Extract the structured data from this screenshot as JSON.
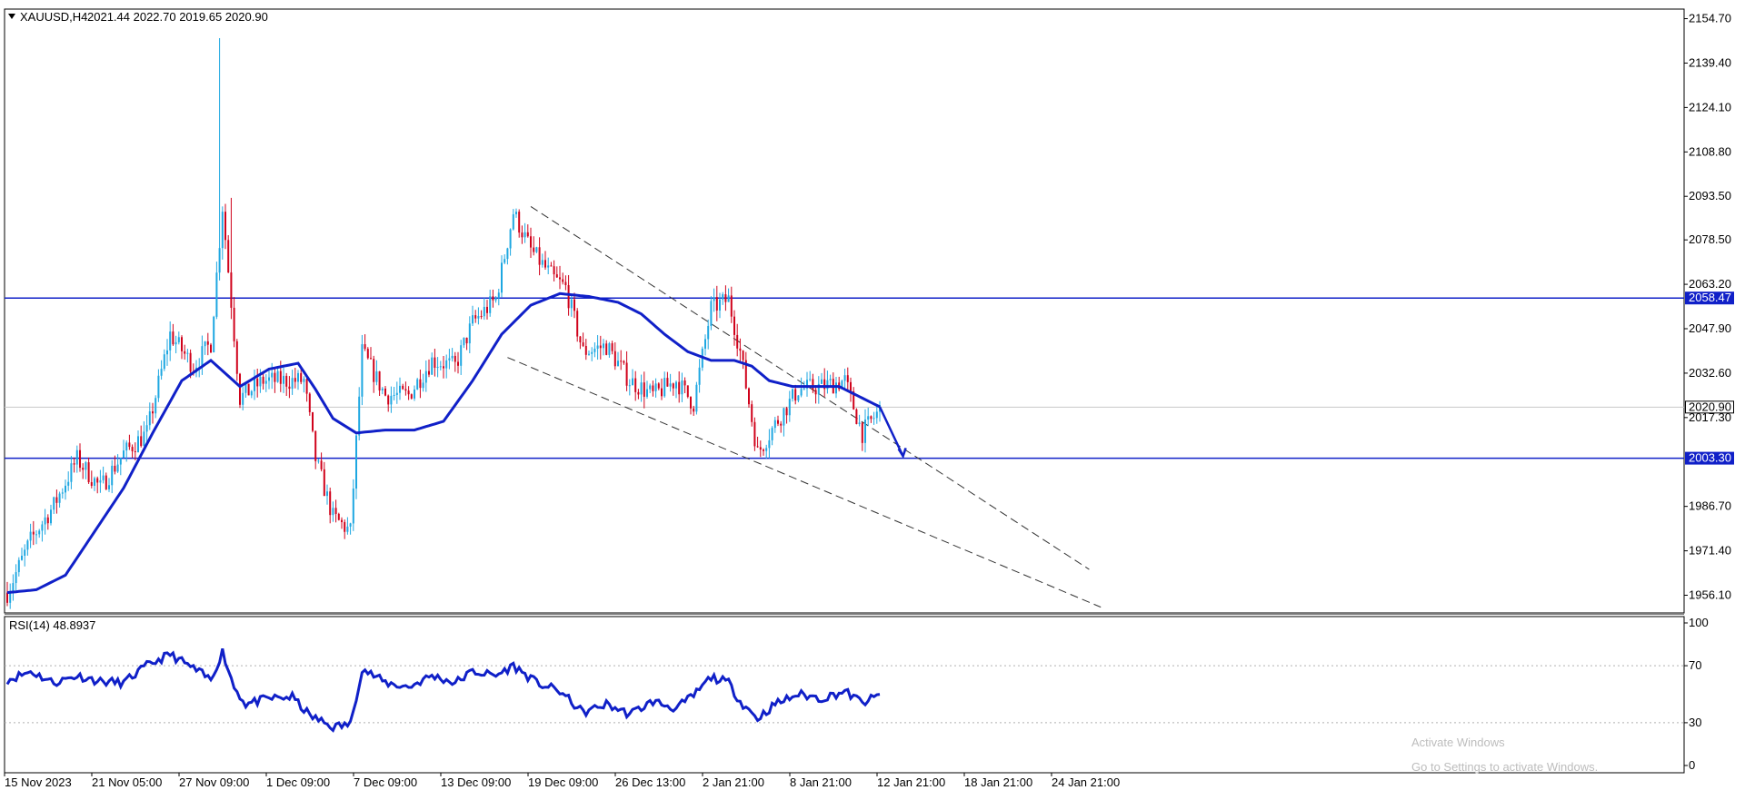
{
  "header": {
    "symbol": "XAUUSD,H4",
    "ohlc": "2021.44 2022.70 2019.65 2020.90"
  },
  "rsi_panel": {
    "label": "RSI(14) 48.8937"
  },
  "watermark": {
    "line1": "Activate Windows",
    "line2": "Go to Settings to activate Windows."
  },
  "colors": {
    "bull": "#1ea7e1",
    "bear": "#d0021b",
    "ma": "#1020c8",
    "hline": "#1020c8",
    "rsi": "#1020c8",
    "channel": "#333333",
    "price_tag_bg": "#1020c8",
    "current_tag_bg": "#ffffff"
  },
  "chart_data": [
    {
      "type": "candlestick",
      "symbol": "XAUUSD",
      "timeframe": "H4",
      "ylim": [
        1950.0,
        2158.0
      ],
      "y_ticks": [
        "2154.70",
        "2139.40",
        "2124.10",
        "2108.80",
        "2093.50",
        "2078.50",
        "2063.20",
        "2047.90",
        "2032.60",
        "2017.30",
        "1986.70",
        "1971.40",
        "1956.10"
      ],
      "x_ticks": [
        "15 Nov 2023",
        "21 Nov 05:00",
        "27 Nov 09:00",
        "1 Dec 09:00",
        "7 Dec 09:00",
        "13 Dec 09:00",
        "19 Dec 09:00",
        "26 Dec 13:00",
        "2 Jan 21:00",
        "8 Jan 21:00",
        "12 Jan 21:00",
        "18 Jan 21:00",
        "24 Jan 21:00"
      ],
      "current_price": "2020.90",
      "horizontal_levels": [
        {
          "label": "2058.47",
          "value": 2058.47
        },
        {
          "label": "2003.30",
          "value": 2003.3
        }
      ],
      "close_anchors": [
        [
          0,
          1957
        ],
        [
          8,
          1975
        ],
        [
          16,
          1987
        ],
        [
          24,
          2003
        ],
        [
          32,
          1993
        ],
        [
          40,
          2005
        ],
        [
          48,
          2012
        ],
        [
          56,
          2046
        ],
        [
          64,
          2035
        ],
        [
          70,
          2043
        ],
        [
          74,
          2090
        ],
        [
          80,
          2024
        ],
        [
          88,
          2030
        ],
        [
          96,
          2030
        ],
        [
          102,
          2030
        ],
        [
          106,
          2003
        ],
        [
          112,
          1983
        ],
        [
          118,
          1978
        ],
        [
          122,
          2040
        ],
        [
          130,
          2025
        ],
        [
          138,
          2025
        ],
        [
          146,
          2037
        ],
        [
          154,
          2035
        ],
        [
          160,
          2050
        ],
        [
          168,
          2058
        ],
        [
          174,
          2088
        ],
        [
          180,
          2075
        ],
        [
          188,
          2065
        ],
        [
          192,
          2062
        ],
        [
          198,
          2040
        ],
        [
          206,
          2042
        ],
        [
          214,
          2030
        ],
        [
          222,
          2025
        ],
        [
          230,
          2030
        ],
        [
          236,
          2022
        ],
        [
          242,
          2055
        ],
        [
          248,
          2058
        ],
        [
          252,
          2040
        ],
        [
          258,
          2005
        ],
        [
          264,
          2015
        ],
        [
          272,
          2027
        ],
        [
          280,
          2028
        ],
        [
          288,
          2030
        ],
        [
          294,
          2012
        ],
        [
          300,
          2020
        ]
      ],
      "moving_average": [
        [
          0,
          1957
        ],
        [
          10,
          1958
        ],
        [
          20,
          1963
        ],
        [
          30,
          1978
        ],
        [
          40,
          1993
        ],
        [
          50,
          2012
        ],
        [
          60,
          2030
        ],
        [
          70,
          2037
        ],
        [
          80,
          2028
        ],
        [
          90,
          2034
        ],
        [
          100,
          2036
        ],
        [
          106,
          2027
        ],
        [
          112,
          2017
        ],
        [
          120,
          2012
        ],
        [
          130,
          2013
        ],
        [
          140,
          2013
        ],
        [
          150,
          2016
        ],
        [
          160,
          2030
        ],
        [
          170,
          2046
        ],
        [
          180,
          2056
        ],
        [
          190,
          2060
        ],
        [
          200,
          2059
        ],
        [
          210,
          2057
        ],
        [
          218,
          2053
        ],
        [
          226,
          2046
        ],
        [
          234,
          2040
        ],
        [
          242,
          2037
        ],
        [
          250,
          2037
        ],
        [
          256,
          2035
        ],
        [
          262,
          2030
        ],
        [
          270,
          2028
        ],
        [
          280,
          2028
        ],
        [
          286,
          2028
        ],
        [
          292,
          2025
        ],
        [
          300,
          2021
        ]
      ],
      "forecast_arrow": [
        [
          300,
          2021
        ],
        [
          308,
          2004
        ]
      ],
      "channel_upper": [
        [
          180,
          2090
        ],
        [
          372,
          1965
        ]
      ],
      "channel_lower": [
        [
          172,
          2038
        ],
        [
          376,
          1952
        ]
      ],
      "bar_count": 301
    },
    {
      "type": "line",
      "name": "RSI(14)",
      "ylim": [
        0,
        100
      ],
      "y_ticks": [
        "100",
        "70",
        "30",
        "0"
      ],
      "levels": [
        70,
        30
      ],
      "value": 48.8937,
      "anchors": [
        [
          0,
          60
        ],
        [
          8,
          66
        ],
        [
          16,
          58
        ],
        [
          24,
          63
        ],
        [
          32,
          59
        ],
        [
          40,
          58
        ],
        [
          48,
          70
        ],
        [
          56,
          78
        ],
        [
          64,
          68
        ],
        [
          70,
          60
        ],
        [
          74,
          80
        ],
        [
          78,
          55
        ],
        [
          82,
          43
        ],
        [
          90,
          47
        ],
        [
          98,
          48
        ],
        [
          104,
          35
        ],
        [
          112,
          27
        ],
        [
          118,
          29
        ],
        [
          122,
          68
        ],
        [
          130,
          58
        ],
        [
          138,
          55
        ],
        [
          146,
          63
        ],
        [
          154,
          58
        ],
        [
          160,
          66
        ],
        [
          168,
          63
        ],
        [
          174,
          70
        ],
        [
          182,
          58
        ],
        [
          190,
          52
        ],
        [
          198,
          37
        ],
        [
          206,
          43
        ],
        [
          214,
          36
        ],
        [
          222,
          45
        ],
        [
          230,
          40
        ],
        [
          236,
          49
        ],
        [
          242,
          62
        ],
        [
          248,
          58
        ],
        [
          252,
          45
        ],
        [
          258,
          33
        ],
        [
          264,
          43
        ],
        [
          272,
          50
        ],
        [
          280,
          47
        ],
        [
          288,
          52
        ],
        [
          294,
          44
        ],
        [
          300,
          49
        ]
      ]
    }
  ]
}
